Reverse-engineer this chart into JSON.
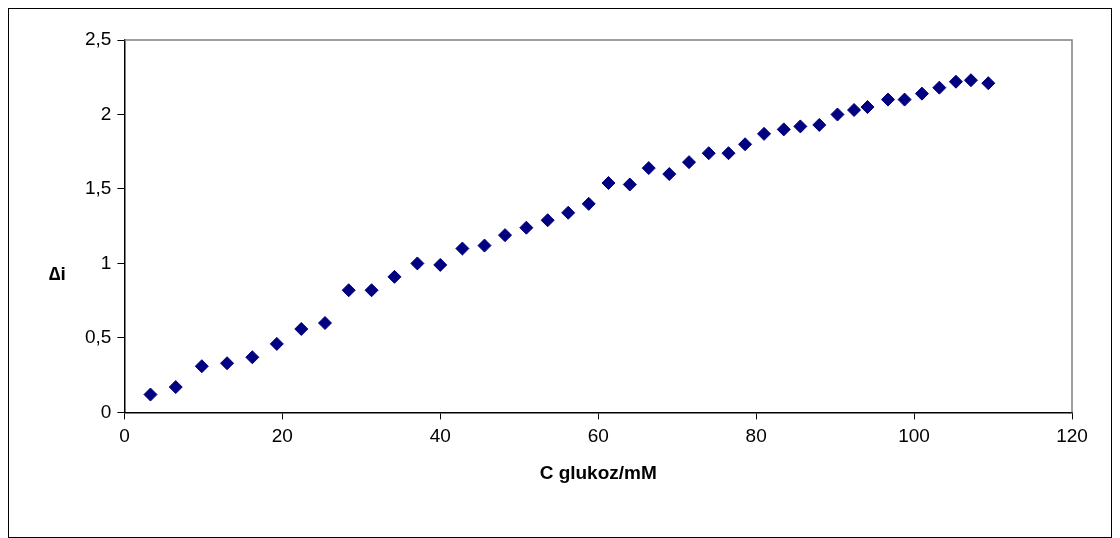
{
  "chart_data": {
    "type": "scatter",
    "xlabel": "C glukoz/mM",
    "ylabel": "∆i",
    "marker": "diamond",
    "grid": false,
    "legend": false,
    "x": [
      3.3,
      6.5,
      9.8,
      13,
      16.2,
      19.3,
      22.4,
      25.4,
      28.4,
      31.3,
      34.2,
      37.1,
      40,
      42.8,
      45.6,
      48.2,
      50.9,
      53.6,
      56.2,
      58.8,
      61.3,
      64,
      66.4,
      69,
      71.5,
      74,
      76.5,
      78.6,
      81,
      83.5,
      85.6,
      88,
      90.3,
      92.4,
      94.1,
      96.7,
      98.8,
      101,
      103.2,
      105.3,
      107.2,
      109.4
    ],
    "series": [
      {
        "color": "#000080",
        "values": [
          0.12,
          0.17,
          0.31,
          0.33,
          0.37,
          0.46,
          0.56,
          0.6,
          0.82,
          0.82,
          0.91,
          1.0,
          0.99,
          1.1,
          1.12,
          1.19,
          1.24,
          1.29,
          1.34,
          1.4,
          1.54,
          1.53,
          1.64,
          1.6,
          1.68,
          1.74,
          1.74,
          1.8,
          1.87,
          1.9,
          1.92,
          1.93,
          2.0,
          2.03,
          2.05,
          2.1,
          2.1,
          2.14,
          2.18,
          2.22,
          2.23,
          2.21
        ]
      }
    ],
    "xlim": [
      0,
      120
    ],
    "xticks": [
      0,
      20,
      40,
      60,
      80,
      100,
      120
    ],
    "ylim": [
      0,
      2.5
    ],
    "yticks": [
      0,
      {
        "value": 0.5,
        "label": "0,5"
      },
      1,
      {
        "value": 1.5,
        "label": "1,5"
      },
      2,
      {
        "value": 2.5,
        "label": "2,5"
      }
    ]
  }
}
